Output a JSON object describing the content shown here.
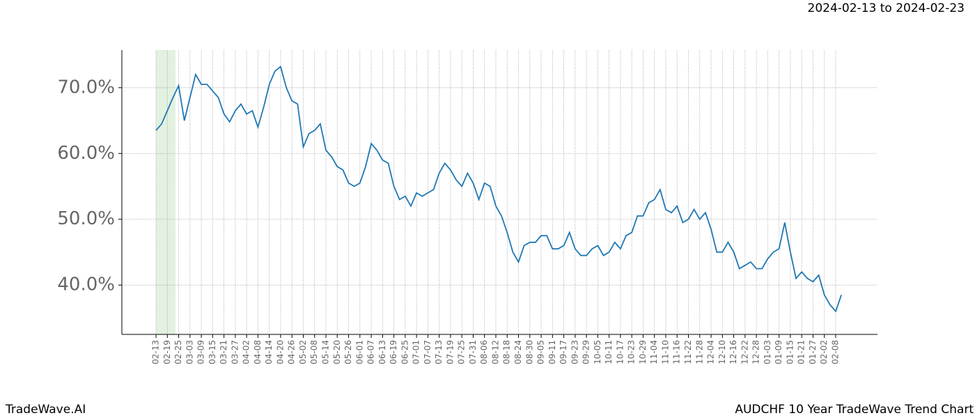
{
  "chart_data": {
    "type": "line",
    "subtitle": "2024-02-13 to 2024-02-23",
    "footer_left": "TradeWave.AI",
    "footer_right": "AUDCHF 10 Year TradeWave Trend Chart",
    "categories": [
      "02-13",
      null,
      "02-19",
      null,
      "02-25",
      null,
      "03-03",
      null,
      "03-09",
      null,
      "03-15",
      null,
      "03-21",
      null,
      "03-27",
      null,
      "04-02",
      null,
      "04-08",
      null,
      "04-14",
      null,
      "04-20",
      null,
      "04-26",
      null,
      "05-02",
      null,
      "05-08",
      null,
      "05-14",
      null,
      "05-20",
      null,
      "05-26",
      null,
      "06-01",
      null,
      "06-07",
      null,
      "06-13",
      null,
      "06-19",
      null,
      "06-25",
      null,
      "07-01",
      null,
      "07-07",
      null,
      "07-13",
      null,
      "07-19",
      null,
      "07-25",
      null,
      "07-31",
      null,
      "08-06",
      null,
      "08-12",
      null,
      "08-18",
      null,
      "08-24",
      null,
      "08-30",
      null,
      "09-05",
      null,
      "09-11",
      null,
      "09-17",
      null,
      "09-23",
      null,
      "09-29",
      null,
      "10-05",
      null,
      "10-11",
      null,
      "10-17",
      null,
      "10-23",
      null,
      "10-29",
      null,
      "11-04",
      null,
      "11-10",
      null,
      "11-16",
      null,
      "11-22",
      null,
      "11-28",
      null,
      "12-04",
      null,
      "12-10",
      null,
      "12-16",
      null,
      "12-22",
      null,
      "12-28",
      null,
      "01-03",
      null,
      "01-09",
      null,
      "01-15",
      null,
      "01-21",
      null,
      "01-27",
      null,
      "02-02",
      null,
      "02-08",
      null
    ],
    "series": [
      {
        "color": "#1f77b4",
        "values": [
          63.5,
          64.5,
          66.5,
          68.5,
          70.3,
          65,
          68.5,
          72.0,
          70.5,
          70.5,
          69.5,
          68.5,
          66.0,
          64.8,
          66.5,
          67.5,
          66.0,
          66.5,
          64.0,
          67,
          70.5,
          72.5,
          73.2,
          70,
          68,
          67.5,
          61,
          63,
          63.5,
          64.5,
          60.5,
          59.5,
          58.0,
          57.5,
          55.5,
          55,
          55.5,
          58,
          61.5,
          60.5,
          59,
          58.5,
          55,
          53,
          53.5,
          52,
          54,
          53.5,
          54,
          54.5,
          57,
          58.5,
          57.5,
          56,
          55,
          57,
          55.5,
          53,
          55.5,
          55,
          52,
          50.5,
          48,
          45,
          43.5,
          46,
          46.5,
          46.5,
          47.5,
          47.5,
          45.5,
          45.5,
          46,
          48,
          45.5,
          44.5,
          44.5,
          45.5,
          46,
          44.5,
          45,
          46.5,
          45.5,
          47.5,
          48,
          50.5,
          50.5,
          52.5,
          53,
          54.5,
          51.5,
          51,
          52,
          49.5,
          50,
          51.5,
          50,
          51,
          48.5,
          45,
          45,
          46.5,
          45,
          42.5,
          43,
          43.5,
          42.5,
          42.5,
          44,
          45,
          45.5,
          49.5,
          45,
          41,
          42,
          41,
          40.5,
          41.5,
          38.5,
          37,
          36,
          38.5
        ]
      }
    ],
    "ylim": [
      32.5,
      75.7
    ],
    "yticks": [
      {
        "value": 40,
        "label": "40.0%"
      },
      {
        "value": 50,
        "label": "50.0%"
      },
      {
        "value": 60,
        "label": "60.0%"
      },
      {
        "value": 70,
        "label": "70.0%"
      }
    ],
    "grid": true
  }
}
